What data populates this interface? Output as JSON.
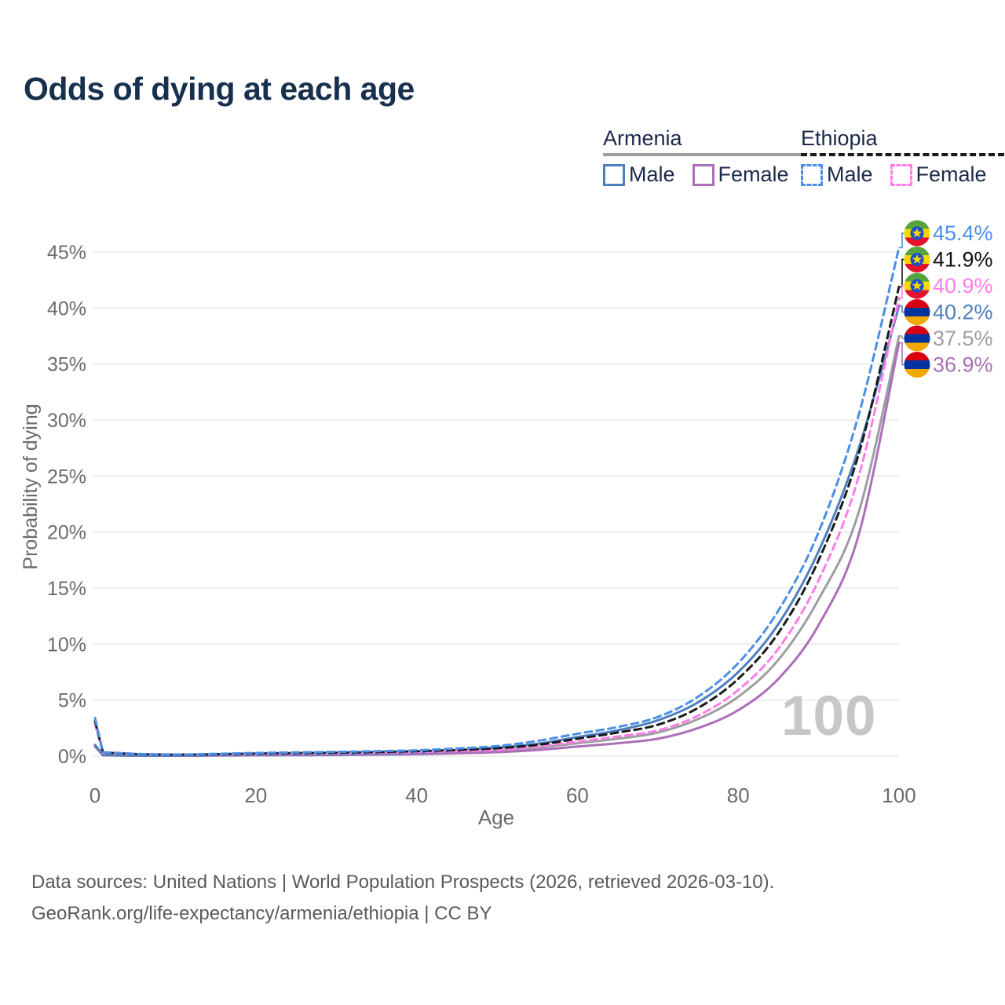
{
  "title": "Odds of dying at each age",
  "watermark_age": "100",
  "legend": {
    "groups": [
      {
        "name": "Armenia",
        "underline_color": "#9e9ea2",
        "underline_style": "solid",
        "items": [
          {
            "label": "Male",
            "color": "#4e7fbe",
            "style": "solid"
          },
          {
            "label": "Female",
            "color": "#ab6fb8",
            "style": "solid"
          }
        ]
      },
      {
        "name": "Ethiopia",
        "underline_color": "#1a1a1a",
        "underline_style": "dashed",
        "items": [
          {
            "label": "Male",
            "color": "#4a8fe8",
            "style": "dashed"
          },
          {
            "label": "Female",
            "color": "#ff7de8",
            "style": "dashed"
          }
        ]
      }
    ]
  },
  "footer": {
    "line1": "Data sources: United Nations | World Population Prospects (2026, retrieved 2026-03-10).",
    "line2": "GeoRank.org/life-expectancy/armenia/ethiopia | CC BY"
  },
  "flag_colors": {
    "ethiopia": {
      "stripes": [
        "#56a53c",
        "#f5d800",
        "#e8112d"
      ],
      "disc": "#2050c8",
      "star": "#f5d800"
    },
    "armenia": {
      "stripes": [
        "#d90012",
        "#0033a0",
        "#f2a800"
      ]
    }
  },
  "chart_data": {
    "type": "line",
    "title": "Odds of dying at each age",
    "xlabel": "Age",
    "ylabel": "Probability of dying",
    "xlim": [
      0,
      100
    ],
    "ylim": [
      0,
      46.5
    ],
    "x_ticks": [
      0,
      20,
      40,
      60,
      80,
      100
    ],
    "y_ticks": [
      0,
      5,
      10,
      15,
      20,
      25,
      30,
      35,
      40,
      45
    ],
    "y_tick_suffix": "%",
    "grid": "horizontal",
    "legend_position": "top-right",
    "ages": [
      0,
      1,
      5,
      10,
      15,
      20,
      25,
      30,
      35,
      40,
      45,
      50,
      55,
      60,
      65,
      70,
      75,
      80,
      85,
      90,
      95,
      100
    ],
    "series": [
      {
        "name": "Armenia (all)",
        "country": "armenia",
        "sex": "all",
        "color": "#9e9ea2",
        "dash": "solid",
        "end_label": "37.5%",
        "label_color": "#9e9ea2",
        "values": [
          0.92,
          0.08,
          0.04,
          0.04,
          0.06,
          0.09,
          0.11,
          0.13,
          0.17,
          0.24,
          0.36,
          0.5,
          0.75,
          1.15,
          1.55,
          2.1,
          3.3,
          5.3,
          8.6,
          14.0,
          21.8,
          37.5
        ]
      },
      {
        "name": "Armenia Female",
        "country": "armenia",
        "sex": "female",
        "color": "#ab6fb8",
        "dash": "solid",
        "end_label": "36.9%",
        "label_color": "#ab6fb8",
        "values": [
          0.85,
          0.07,
          0.04,
          0.04,
          0.05,
          0.07,
          0.08,
          0.1,
          0.13,
          0.17,
          0.25,
          0.35,
          0.55,
          0.85,
          1.15,
          1.55,
          2.5,
          4.1,
          6.9,
          11.7,
          19.8,
          36.9
        ]
      },
      {
        "name": "Armenia Male",
        "country": "armenia",
        "sex": "male",
        "color": "#4e7fbe",
        "dash": "solid",
        "end_label": "40.2%",
        "label_color": "#4e7fbe",
        "values": [
          1.0,
          0.09,
          0.05,
          0.05,
          0.08,
          0.11,
          0.13,
          0.16,
          0.22,
          0.31,
          0.48,
          0.75,
          1.1,
          1.7,
          2.3,
          3.2,
          4.8,
          7.5,
          11.8,
          18.3,
          27.5,
          40.2
        ]
      },
      {
        "name": "Ethiopia Female",
        "country": "ethiopia",
        "sex": "female",
        "color": "#ff7de8",
        "dash": "dashed",
        "end_label": "40.9%",
        "label_color": "#ff7de8",
        "values": [
          2.9,
          0.29,
          0.16,
          0.12,
          0.14,
          0.18,
          0.21,
          0.24,
          0.29,
          0.36,
          0.45,
          0.55,
          0.85,
          1.3,
          1.75,
          2.3,
          3.6,
          5.9,
          9.6,
          15.7,
          25.0,
          40.9
        ]
      },
      {
        "name": "Ethiopia (all)",
        "country": "ethiopia",
        "sex": "all",
        "color": "#1a1a1a",
        "dash": "dashed",
        "end_label": "41.9%",
        "label_color": "#111111",
        "values": [
          3.15,
          0.32,
          0.18,
          0.13,
          0.17,
          0.23,
          0.27,
          0.31,
          0.36,
          0.44,
          0.55,
          0.7,
          1.0,
          1.55,
          2.1,
          2.8,
          4.3,
          6.9,
          11.0,
          17.5,
          27.0,
          41.9
        ]
      },
      {
        "name": "Ethiopia Male",
        "country": "ethiopia",
        "sex": "male",
        "color": "#4a8fe8",
        "dash": "dashed",
        "end_label": "45.4%",
        "label_color": "#4a8fe8",
        "values": [
          3.4,
          0.35,
          0.2,
          0.15,
          0.2,
          0.28,
          0.33,
          0.38,
          0.44,
          0.52,
          0.68,
          0.9,
          1.35,
          2.0,
          2.6,
          3.5,
          5.3,
          8.3,
          13.0,
          20.0,
          30.5,
          45.4
        ]
      }
    ]
  }
}
